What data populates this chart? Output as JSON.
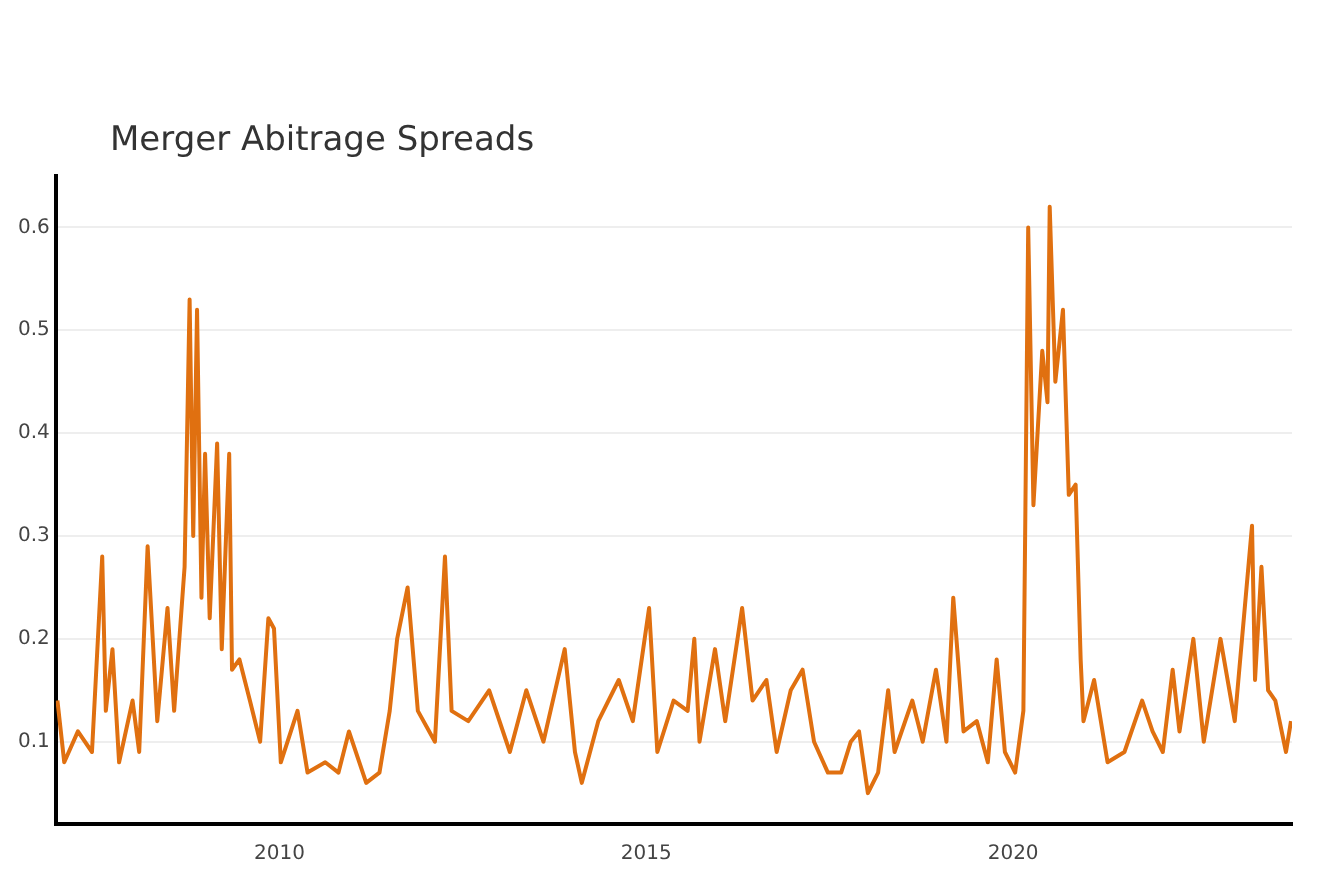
{
  "chart_data": {
    "type": "line",
    "title": "Merger Abitrage Spreads",
    "x": [
      "2006-12-23",
      "2007-01-26",
      "2007-04-04",
      "2007-06-13",
      "2007-08-03",
      "2007-08-21",
      "2007-09-23",
      "2007-10-26",
      "2008-01-01",
      "2008-02-03",
      "2008-03-16",
      "2008-05-03",
      "2008-06-23",
      "2008-07-26",
      "2008-09-16",
      "2008-10-11",
      "2008-10-29",
      "2008-11-17",
      "2008-12-09",
      "2008-12-27",
      "2009-01-19",
      "2009-02-25",
      "2009-03-20",
      "2009-04-26",
      "2009-05-10",
      "2009-06-16",
      "2009-08-07",
      "2009-09-27",
      "2009-11-07",
      "2009-12-05",
      "2010-01-08",
      "2010-04-01",
      "2010-05-21",
      "2010-08-17",
      "2010-10-22",
      "2010-12-13",
      "2011-03-09",
      "2011-05-14",
      "2011-07-04",
      "2011-08-10",
      "2011-10-01",
      "2011-11-21",
      "2012-02-14",
      "2012-04-04",
      "2012-05-07",
      "2012-07-29",
      "2012-11-10",
      "2013-02-21",
      "2013-05-14",
      "2013-08-07",
      "2013-11-21",
      "2014-01-11",
      "2014-02-14",
      "2014-05-07",
      "2014-08-17",
      "2014-10-26",
      "2015-01-15",
      "2015-02-25",
      "2015-05-17",
      "2015-07-26",
      "2015-08-28",
      "2015-09-23",
      "2015-12-09",
      "2016-01-29",
      "2016-04-22",
      "2016-06-13",
      "2016-08-21",
      "2016-10-11",
      "2016-12-20",
      "2017-02-17",
      "2017-04-15",
      "2017-06-23",
      "2017-08-28",
      "2017-10-15",
      "2017-11-25",
      "2018-01-08",
      "2018-02-28",
      "2018-04-19",
      "2018-05-21",
      "2018-08-17",
      "2018-10-08",
      "2018-12-13",
      "2019-02-03",
      "2019-03-09",
      "2019-04-29",
      "2019-07-04",
      "2019-08-28",
      "2019-10-11",
      "2019-11-21",
      "2020-01-11",
      "2020-02-21",
      "2020-03-16",
      "2020-04-11",
      "2020-05-25",
      "2020-06-20",
      "2020-07-01",
      "2020-07-29",
      "2020-09-05",
      "2020-10-04",
      "2020-11-07",
      "2020-12-02",
      "2020-12-16",
      "2021-02-07",
      "2021-04-15",
      "2021-07-08",
      "2021-10-04",
      "2021-11-25",
      "2022-01-15",
      "2022-03-05",
      "2022-04-08",
      "2022-06-16",
      "2022-08-07",
      "2022-10-29",
      "2023-01-08",
      "2023-04-04",
      "2023-04-19",
      "2023-05-21",
      "2023-06-23",
      "2023-07-29",
      "2023-09-20",
      "2023-10-15"
    ],
    "series": [
      {
        "color": "#e07010",
        "values": [
          0.14,
          0.08,
          0.11,
          0.09,
          0.28,
          0.13,
          0.19,
          0.08,
          0.14,
          0.09,
          0.29,
          0.12,
          0.23,
          0.13,
          0.27,
          0.53,
          0.3,
          0.52,
          0.24,
          0.38,
          0.22,
          0.39,
          0.19,
          0.38,
          0.17,
          0.18,
          0.14,
          0.1,
          0.22,
          0.21,
          0.08,
          0.13,
          0.07,
          0.08,
          0.07,
          0.11,
          0.06,
          0.07,
          0.13,
          0.2,
          0.25,
          0.13,
          0.1,
          0.28,
          0.13,
          0.12,
          0.15,
          0.09,
          0.15,
          0.1,
          0.19,
          0.09,
          0.06,
          0.12,
          0.16,
          0.12,
          0.23,
          0.09,
          0.14,
          0.13,
          0.2,
          0.1,
          0.19,
          0.12,
          0.23,
          0.14,
          0.16,
          0.09,
          0.15,
          0.17,
          0.1,
          0.07,
          0.07,
          0.1,
          0.11,
          0.05,
          0.07,
          0.15,
          0.09,
          0.14,
          0.1,
          0.17,
          0.1,
          0.24,
          0.11,
          0.12,
          0.08,
          0.18,
          0.09,
          0.07,
          0.13,
          0.6,
          0.33,
          0.48,
          0.43,
          0.62,
          0.45,
          0.52,
          0.34,
          0.35,
          0.18,
          0.12,
          0.16,
          0.08,
          0.09,
          0.14,
          0.11,
          0.09,
          0.17,
          0.11,
          0.2,
          0.1,
          0.2,
          0.12,
          0.31,
          0.16,
          0.27,
          0.15,
          0.14,
          0.09,
          0.12
        ]
      }
    ],
    "xlim": [
      "2006-12-15",
      "2023-10-20"
    ],
    "xticks": [
      "2010",
      "2015",
      "2020"
    ],
    "ylim": [
      0.02,
      0.65
    ],
    "yticks": [
      0.1,
      0.2,
      0.3,
      0.4,
      0.5,
      0.6
    ],
    "grid": "y",
    "legend": false,
    "marker": "none",
    "line_style": "solid"
  }
}
